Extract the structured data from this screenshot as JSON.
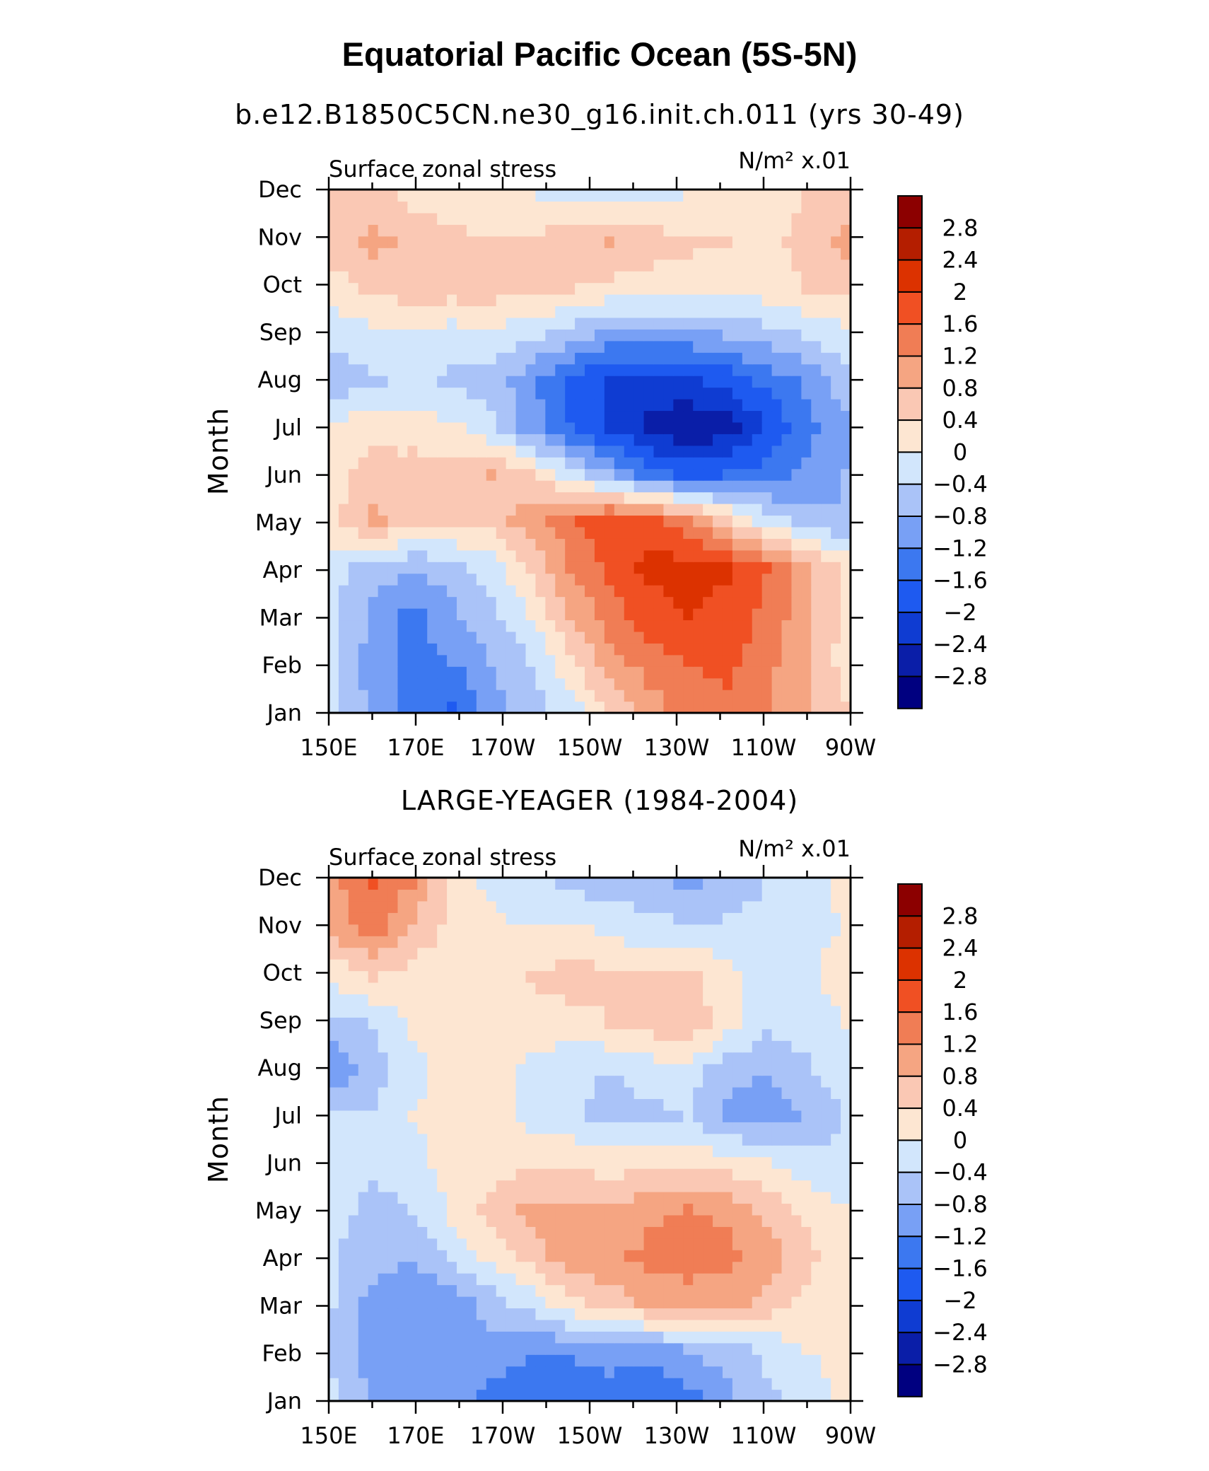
{
  "title": "Equatorial Pacific Ocean (5S-5N)",
  "levels": [
    -2.8,
    -2.4,
    -2.0,
    -1.6,
    -1.2,
    -0.8,
    -0.4,
    0,
    0.4,
    0.8,
    1.2,
    1.6,
    2.0,
    2.4,
    2.8
  ],
  "colormap": [
    "#000080",
    "#0a1ea8",
    "#0f3cd2",
    "#1e5af0",
    "#3c78f0",
    "#78a0f5",
    "#aac3f8",
    "#d2e6fc",
    "#fde6d2",
    "#fac8b4",
    "#f5a582",
    "#f07d55",
    "#f05023",
    "#dc3200",
    "#b41e00",
    "#8c0000"
  ],
  "chart_data": [
    {
      "type": "heatmap",
      "subtitle": "b.e12.B1850C5CN.ne30_g16.init.ch.011 (yrs 30-49)",
      "left_label": "Surface zonal stress",
      "right_label": "N/m² x.01",
      "ylabel": "Month",
      "x_ticks": [
        "150E",
        "170E",
        "170W",
        "150W",
        "130W",
        "110W",
        "90W"
      ],
      "y_ticks": [
        "Jan",
        "Feb",
        "Mar",
        "Apr",
        "May",
        "Jun",
        "Jul",
        "Aug",
        "Sep",
        "Oct",
        "Nov",
        "Dec"
      ],
      "colorbar_labels": [
        "2.8",
        "2.4",
        "2",
        "1.6",
        "1.2",
        "0.8",
        "0.4",
        "0",
        "−0.4",
        "−0.8",
        "−1.2",
        "−1.6",
        "−2",
        "−2.4",
        "−2.8"
      ],
      "values": [
        [
          -0.4,
          -0.9,
          -1.3,
          -1.7,
          -1.0,
          -0.6,
          -0.2,
          0.5,
          1.0,
          1.4,
          1.4,
          1.2,
          0.8,
          0.4
        ],
        [
          -0.4,
          -1.0,
          -1.4,
          -1.2,
          -0.8,
          -0.4,
          0.3,
          1.0,
          1.4,
          1.6,
          1.8,
          1.3,
          0.9,
          0.2
        ],
        [
          -0.3,
          -0.9,
          -1.3,
          -0.9,
          -0.5,
          0.0,
          0.8,
          1.4,
          1.8,
          2.0,
          1.8,
          1.5,
          0.9,
          0.3
        ],
        [
          -0.3,
          -0.6,
          -0.8,
          -0.6,
          -0.2,
          0.4,
          1.2,
          1.7,
          2.1,
          2.2,
          2.1,
          1.6,
          0.9,
          0.3
        ],
        [
          0.3,
          0.9,
          0.6,
          0.5,
          0.6,
          1.0,
          1.5,
          1.9,
          1.8,
          1.3,
          0.6,
          -0.2,
          -0.6,
          -0.8
        ],
        [
          0.3,
          0.5,
          0.6,
          0.6,
          0.8,
          0.5,
          -0.2,
          -0.8,
          -1.4,
          -1.7,
          -1.6,
          -1.4,
          -1.1,
          -0.8
        ],
        [
          0.1,
          0.3,
          0.2,
          0.1,
          -0.3,
          -1.0,
          -1.6,
          -2.1,
          -2.5,
          -2.8,
          -2.6,
          -2.0,
          -1.3,
          -0.9
        ],
        [
          -0.7,
          -0.5,
          -0.3,
          -0.5,
          -0.6,
          -1.1,
          -1.7,
          -2.1,
          -2.2,
          -2.1,
          -1.9,
          -1.5,
          -1.1,
          -0.6
        ],
        [
          -0.3,
          -0.1,
          -0.1,
          -0.2,
          -0.1,
          -0.3,
          -0.6,
          -0.9,
          -1.0,
          -0.9,
          -0.8,
          -0.6,
          -0.4,
          -0.1
        ],
        [
          0.2,
          0.5,
          0.6,
          0.6,
          0.6,
          0.5,
          0.4,
          0.3,
          0.2,
          0.1,
          0.0,
          0.2,
          0.4,
          0.5
        ],
        [
          0.6,
          0.9,
          0.7,
          0.5,
          0.4,
          0.5,
          0.7,
          0.8,
          0.6,
          0.5,
          0.4,
          0.3,
          0.5,
          0.9
        ],
        [
          0.5,
          0.5,
          0.3,
          0.2,
          0.1,
          0.0,
          -0.2,
          -0.2,
          -0.1,
          0.0,
          0.1,
          0.2,
          0.4,
          0.6
        ]
      ]
    },
    {
      "type": "heatmap",
      "subtitle": "LARGE-YEAGER (1984-2004)",
      "left_label": "Surface zonal stress",
      "right_label": "N/m² x.01",
      "ylabel": "Month",
      "x_ticks": [
        "150E",
        "170E",
        "170W",
        "150W",
        "130W",
        "110W",
        "90W"
      ],
      "y_ticks": [
        "Jan",
        "Feb",
        "Mar",
        "Apr",
        "May",
        "Jun",
        "Jul",
        "Aug",
        "Sep",
        "Oct",
        "Nov",
        "Dec"
      ],
      "colorbar_labels": [
        "2.8",
        "2.4",
        "2",
        "1.6",
        "1.2",
        "0.8",
        "0.4",
        "0",
        "−0.4",
        "−0.8",
        "−1.2",
        "−1.6",
        "−2",
        "−2.4",
        "−2.8"
      ],
      "values": [
        [
          -0.3,
          -0.9,
          -1.0,
          -0.9,
          -1.3,
          -1.6,
          -1.5,
          -1.4,
          -1.6,
          -1.3,
          -0.9,
          -0.5,
          -0.2,
          0.1
        ],
        [
          -0.6,
          -1.0,
          -1.0,
          -0.9,
          -0.9,
          -1.1,
          -1.1,
          -1.0,
          -0.9,
          -0.8,
          -0.6,
          -0.3,
          0.0,
          0.1
        ],
        [
          -0.4,
          -1.0,
          -1.1,
          -1.1,
          -0.6,
          -0.2,
          0.3,
          0.6,
          0.9,
          1.0,
          0.9,
          0.7,
          0.3,
          0.2
        ],
        [
          -0.4,
          -0.6,
          -0.8,
          -0.3,
          0.1,
          0.6,
          1.0,
          1.1,
          1.3,
          1.4,
          1.3,
          1.0,
          0.5,
          0.2
        ],
        [
          -0.2,
          -0.6,
          -0.4,
          0.1,
          0.5,
          0.9,
          0.9,
          0.8,
          1.1,
          1.2,
          1.1,
          0.7,
          0.3,
          0.0
        ],
        [
          -0.2,
          -0.3,
          -0.1,
          0.1,
          0.2,
          0.3,
          0.3,
          0.2,
          0.3,
          0.3,
          0.2,
          0.0,
          -0.2,
          -0.3
        ],
        [
          -0.3,
          -0.4,
          0.0,
          0.2,
          0.1,
          -0.1,
          -0.3,
          -0.6,
          -0.5,
          -0.4,
          -0.9,
          -1.0,
          -0.8,
          -0.4
        ],
        [
          -1.2,
          -0.6,
          -0.2,
          0.2,
          0.1,
          -0.1,
          -0.3,
          -0.4,
          -0.2,
          -0.2,
          -0.7,
          -0.8,
          -0.5,
          -0.1
        ],
        [
          -0.5,
          -0.4,
          0.1,
          0.2,
          0.2,
          0.3,
          0.2,
          0.4,
          0.6,
          0.7,
          0.2,
          -0.3,
          -0.2,
          0.0
        ],
        [
          0.1,
          0.4,
          0.2,
          0.2,
          0.2,
          0.4,
          0.6,
          0.5,
          0.4,
          0.5,
          0.1,
          -0.2,
          -0.1,
          0.2
        ],
        [
          0.9,
          1.4,
          0.7,
          0.3,
          0.1,
          0.0,
          0.1,
          -0.1,
          -0.2,
          -0.3,
          -0.3,
          -0.2,
          -0.1,
          0.0
        ],
        [
          1.1,
          1.6,
          1.2,
          0.3,
          -0.1,
          -0.3,
          -0.5,
          -0.6,
          -0.7,
          -0.9,
          -0.7,
          -0.4,
          -0.2,
          0.1
        ]
      ]
    }
  ]
}
